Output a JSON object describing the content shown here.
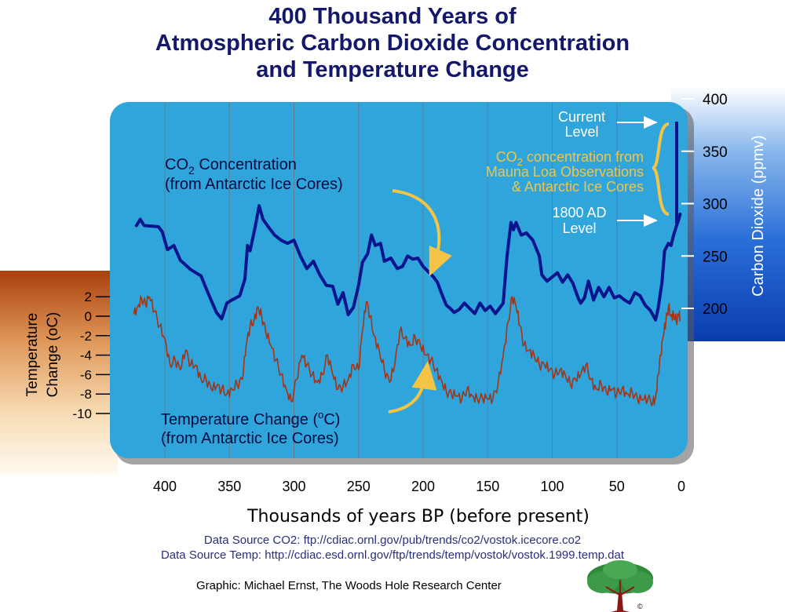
{
  "title_lines": [
    "400 Thousand Years of",
    "Atmospheric Carbon Dioxide Concentration",
    "and Temperature Change"
  ],
  "chart_data": {
    "type": "line",
    "x_axis": {
      "label": "Thousands of years BP (before present)",
      "range": [
        430,
        0
      ],
      "ticks": [
        400,
        350,
        300,
        250,
        200,
        150,
        100,
        50,
        0
      ],
      "grid": true
    },
    "y_axis_left": {
      "label_lines": [
        "Temperature",
        "Change  (oC)"
      ],
      "range": [
        -12,
        4
      ],
      "ticks": [
        2,
        0,
        -2,
        -4,
        -6,
        -8,
        -10
      ]
    },
    "y_axis_right": {
      "label": "Carbon Dioxide (ppmv)",
      "range": [
        160,
        400
      ],
      "ticks": [
        400,
        350,
        300,
        250,
        200
      ]
    },
    "series": [
      {
        "name": "CO2 Concentration (from Antarctic Ice Cores)",
        "axis": "right",
        "color": "#0a148c",
        "points": [
          [
            422,
            279
          ],
          [
            419,
            285
          ],
          [
            416,
            279
          ],
          [
            405,
            278
          ],
          [
            402,
            273
          ],
          [
            398,
            256
          ],
          [
            393,
            260
          ],
          [
            388,
            246
          ],
          [
            380,
            237
          ],
          [
            372,
            231
          ],
          [
            366,
            213
          ],
          [
            360,
            196
          ],
          [
            356,
            190
          ],
          [
            352,
            205
          ],
          [
            348,
            208
          ],
          [
            342,
            212
          ],
          [
            338,
            228
          ],
          [
            336,
            260
          ],
          [
            334,
            255
          ],
          [
            330,
            278
          ],
          [
            327,
            298
          ],
          [
            324,
            285
          ],
          [
            320,
            278
          ],
          [
            315,
            270
          ],
          [
            310,
            265
          ],
          [
            305,
            262
          ],
          [
            300,
            265
          ],
          [
            295,
            250
          ],
          [
            290,
            238
          ],
          [
            285,
            245
          ],
          [
            280,
            232
          ],
          [
            275,
            222
          ],
          [
            270,
            221
          ],
          [
            266,
            204
          ],
          [
            262,
            215
          ],
          [
            258,
            194
          ],
          [
            254,
            201
          ],
          [
            250,
            222
          ],
          [
            247,
            244
          ],
          [
            243,
            252
          ],
          [
            240,
            270
          ],
          [
            237,
            260
          ],
          [
            233,
            262
          ],
          [
            230,
            245
          ],
          [
            225,
            248
          ],
          [
            220,
            238
          ],
          [
            216,
            240
          ],
          [
            212,
            250
          ],
          [
            208,
            247
          ],
          [
            204,
            248
          ],
          [
            200,
            240
          ],
          [
            196,
            235
          ],
          [
            192,
            230
          ],
          [
            189,
            225
          ],
          [
            185,
            212
          ],
          [
            182,
            203
          ],
          [
            179,
            200
          ],
          [
            176,
            196
          ],
          [
            172,
            199
          ],
          [
            168,
            205
          ],
          [
            164,
            200
          ],
          [
            160,
            195
          ],
          [
            156,
            205
          ],
          [
            152,
            198
          ],
          [
            148,
            202
          ],
          [
            144,
            195
          ],
          [
            141,
            200
          ],
          [
            138,
            205
          ],
          [
            135,
            250
          ],
          [
            132,
            282
          ],
          [
            130,
            275
          ],
          [
            128,
            282
          ],
          [
            124,
            270
          ],
          [
            120,
            272
          ],
          [
            115,
            265
          ],
          [
            110,
            250
          ],
          [
            108,
            232
          ],
          [
            104,
            226
          ],
          [
            100,
            230
          ],
          [
            96,
            234
          ],
          [
            92,
            225
          ],
          [
            88,
            232
          ],
          [
            84,
            224
          ],
          [
            80,
            210
          ],
          [
            78,
            205
          ],
          [
            75,
            210
          ],
          [
            72,
            226
          ],
          [
            68,
            208
          ],
          [
            64,
            220
          ],
          [
            60,
            211
          ],
          [
            56,
            220
          ],
          [
            52,
            210
          ],
          [
            48,
            212
          ],
          [
            44,
            208
          ],
          [
            40,
            205
          ],
          [
            36,
            215
          ],
          [
            32,
            212
          ],
          [
            28,
            203
          ],
          [
            24,
            198
          ],
          [
            20,
            189
          ],
          [
            18,
            200
          ],
          [
            15,
            225
          ],
          [
            13,
            255
          ],
          [
            10,
            262
          ],
          [
            8,
            260
          ],
          [
            6,
            270
          ],
          [
            4,
            278
          ],
          [
            2,
            285
          ],
          [
            1,
            290
          ]
        ]
      },
      {
        "name": "Temperature Change (oC) (from Antarctic Ice Cores)",
        "axis": "left",
        "color": "#a83212",
        "points": [
          [
            424,
            0.2
          ],
          [
            421,
            1
          ],
          [
            418,
            1.8
          ],
          [
            415,
            1.2
          ],
          [
            412,
            2
          ],
          [
            408,
            0.5
          ],
          [
            404,
            -1
          ],
          [
            400,
            -2.3
          ],
          [
            396,
            -5
          ],
          [
            392,
            -4.5
          ],
          [
            388,
            -5.5
          ],
          [
            384,
            -3.5
          ],
          [
            380,
            -5
          ],
          [
            376,
            -5
          ],
          [
            372,
            -6.5
          ],
          [
            368,
            -6.5
          ],
          [
            364,
            -7.5
          ],
          [
            360,
            -7.2
          ],
          [
            356,
            -7.5
          ],
          [
            352,
            -8
          ],
          [
            348,
            -7.5
          ],
          [
            344,
            -7
          ],
          [
            340,
            -6.5
          ],
          [
            337,
            -3
          ],
          [
            334,
            -1
          ],
          [
            331,
            -0.5
          ],
          [
            328,
            1
          ],
          [
            325,
            0
          ],
          [
            322,
            -1.5
          ],
          [
            318,
            -3
          ],
          [
            314,
            -4.5
          ],
          [
            310,
            -6
          ],
          [
            306,
            -7.5
          ],
          [
            302,
            -8.8
          ],
          [
            298,
            -6.5
          ],
          [
            294,
            -4
          ],
          [
            290,
            -5
          ],
          [
            286,
            -6
          ],
          [
            282,
            -6.8
          ],
          [
            278,
            -6
          ],
          [
            274,
            -4
          ],
          [
            270,
            -6
          ],
          [
            266,
            -7.5
          ],
          [
            262,
            -7.2
          ],
          [
            258,
            -6.5
          ],
          [
            254,
            -5
          ],
          [
            250,
            -5.5
          ],
          [
            247,
            -1.5
          ],
          [
            244,
            1.5
          ],
          [
            241,
            0
          ],
          [
            238,
            -2
          ],
          [
            234,
            -3.5
          ],
          [
            230,
            -5.5
          ],
          [
            226,
            -6.8
          ],
          [
            222,
            -5
          ],
          [
            218,
            -1.5
          ],
          [
            214,
            -2.2
          ],
          [
            210,
            -3
          ],
          [
            206,
            -2.2
          ],
          [
            202,
            -3
          ],
          [
            198,
            -4
          ],
          [
            194,
            -4.5
          ],
          [
            190,
            -5.5
          ],
          [
            186,
            -6.5
          ],
          [
            182,
            -7.8
          ],
          [
            178,
            -8
          ],
          [
            174,
            -8.2
          ],
          [
            170,
            -8.5
          ],
          [
            166,
            -7.5
          ],
          [
            162,
            -8.2
          ],
          [
            158,
            -8.5
          ],
          [
            154,
            -8.4
          ],
          [
            150,
            -8.5
          ],
          [
            146,
            -8.5
          ],
          [
            142,
            -7
          ],
          [
            138,
            -4
          ],
          [
            134,
            -0.5
          ],
          [
            131,
            2
          ],
          [
            128,
            1
          ],
          [
            125,
            -1
          ],
          [
            122,
            -3
          ],
          [
            118,
            -3.5
          ],
          [
            114,
            -4
          ],
          [
            110,
            -5
          ],
          [
            106,
            -5
          ],
          [
            102,
            -5.5
          ],
          [
            98,
            -6
          ],
          [
            94,
            -5.5
          ],
          [
            90,
            -6
          ],
          [
            86,
            -7
          ],
          [
            82,
            -6.5
          ],
          [
            78,
            -6
          ],
          [
            74,
            -5
          ],
          [
            70,
            -6.5
          ],
          [
            66,
            -7.5
          ],
          [
            62,
            -7
          ],
          [
            58,
            -7.8
          ],
          [
            54,
            -7.5
          ],
          [
            50,
            -8
          ],
          [
            46,
            -7.5
          ],
          [
            42,
            -8
          ],
          [
            38,
            -7.8
          ],
          [
            34,
            -8.5
          ],
          [
            30,
            -8.6
          ],
          [
            26,
            -8.5
          ],
          [
            22,
            -8.8
          ],
          [
            20,
            -8.5
          ],
          [
            18,
            -6
          ],
          [
            16,
            -4
          ],
          [
            14,
            -2
          ],
          [
            12,
            -0.5
          ],
          [
            10,
            1
          ],
          [
            8,
            0
          ],
          [
            6,
            0.2
          ],
          [
            4,
            -0.5
          ],
          [
            2,
            0.2
          ],
          [
            1,
            -0.2
          ]
        ]
      }
    ],
    "annotations": [
      {
        "text_lines": [
          "CO",
          "2",
          " Concentration"
        ],
        "line2": "(from Antarctic Ice Cores)",
        "role": "co2-label"
      },
      {
        "text_lines": [
          "Temperature Change (",
          "o",
          "C)"
        ],
        "line2": "(from Antarctic Ice Cores)",
        "role": "temp-label"
      },
      {
        "text": "Current",
        "text2": "Level",
        "role": "current-level"
      },
      {
        "text": "1800 AD",
        "text2": "Level",
        "role": "1800-level"
      },
      {
        "line1_parts": [
          "CO",
          "2",
          " concentration from"
        ],
        "line2": "Mauna Loa Observations",
        "line3": "& Antarctic Ice Cores",
        "role": "mauna-loa"
      }
    ],
    "colors": {
      "panel": "#2fa5dc",
      "co2": "#0a148c",
      "temp": "#a83212",
      "arrow": "#f5c445",
      "right_band": "#1860c8"
    }
  },
  "sources": {
    "co2": "Data Source CO2: ftp://cdiac.ornl.gov/pub/trends/co2/vostok.icecore.co2",
    "temp": "Data Source Temp: http://cdiac.esd.ornl.gov/ftp/trends/temp/vostok/vostok.1999.temp.dat"
  },
  "credit": "Graphic: Michael Ernst, The Woods Hole Research Center",
  "logo": {
    "icon": "tree-logo-icon",
    "mark": "©"
  }
}
